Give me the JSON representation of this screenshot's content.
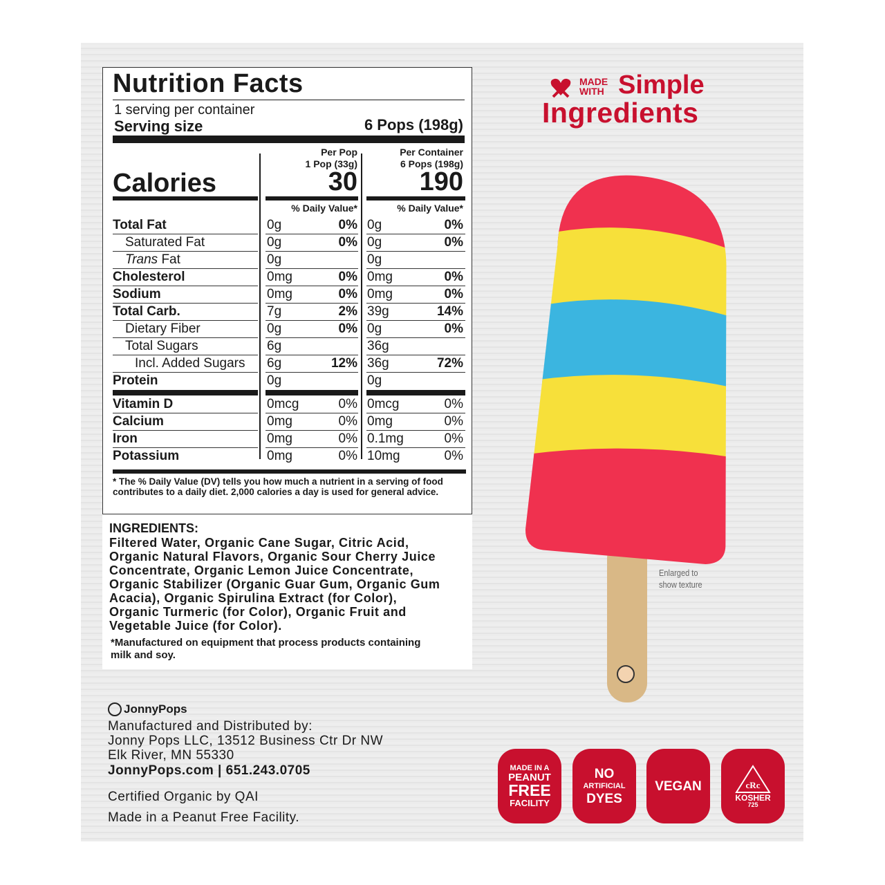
{
  "nutrition": {
    "title": "Nutrition Facts",
    "servings": "1 serving per container",
    "serving_size_label": "Serving size",
    "serving_size_value": "6 Pops (198g)",
    "calories_label": "Calories",
    "col1_head1": "Per Pop",
    "col1_head2": "1 Pop (33g)",
    "col1_calories": "30",
    "col2_head1": "Per Container",
    "col2_head2": "6 Pops (198g)",
    "col2_calories": "190",
    "dv_head": "% Daily Value*",
    "rows": [
      {
        "name": "Total Fat",
        "bold": true,
        "indent": 0,
        "a": "0g",
        "ap": "0%",
        "b": "0g",
        "bp": "0%"
      },
      {
        "name": "Saturated Fat",
        "bold": false,
        "indent": 1,
        "a": "0g",
        "ap": "0%",
        "b": "0g",
        "bp": "0%"
      },
      {
        "name": "Trans Fat",
        "bold": false,
        "indent": 1,
        "italic_prefix": "Trans",
        "a": "0g",
        "ap": "",
        "b": "0g",
        "bp": ""
      },
      {
        "name": "Cholesterol",
        "bold": true,
        "indent": 0,
        "a": "0mg",
        "ap": "0%",
        "b": "0mg",
        "bp": "0%"
      },
      {
        "name": "Sodium",
        "bold": true,
        "indent": 0,
        "a": "0mg",
        "ap": "0%",
        "b": "0mg",
        "bp": "0%"
      },
      {
        "name": "Total Carb.",
        "bold": true,
        "indent": 0,
        "a": "7g",
        "ap": "2%",
        "b": "39g",
        "bp": "14%"
      },
      {
        "name": "Dietary Fiber",
        "bold": false,
        "indent": 1,
        "a": "0g",
        "ap": "0%",
        "b": "0g",
        "bp": "0%"
      },
      {
        "name": "Total Sugars",
        "bold": false,
        "indent": 1,
        "a": "6g",
        "ap": "",
        "b": "36g",
        "bp": ""
      },
      {
        "name": "Incl. Added Sugars",
        "bold": false,
        "indent": 2,
        "a": "6g",
        "ap": "12%",
        "b": "36g",
        "bp": "72%"
      },
      {
        "name": "Protein",
        "bold": true,
        "indent": 0,
        "a": "0g",
        "ap": "",
        "b": "0g",
        "bp": ""
      }
    ],
    "vitamins": [
      {
        "name": "Vitamin D",
        "a": "0mcg",
        "ap": "0%",
        "b": "0mcg",
        "bp": "0%"
      },
      {
        "name": "Calcium",
        "a": "0mg",
        "ap": "0%",
        "b": "0mg",
        "bp": "0%"
      },
      {
        "name": "Iron",
        "a": "0mg",
        "ap": "0%",
        "b": "0.1mg",
        "bp": "0%"
      },
      {
        "name": "Potassium",
        "a": "0mg",
        "ap": "0%",
        "b": "10mg",
        "bp": "0%"
      }
    ],
    "footnote": "* The % Daily Value (DV) tells you how much a nutrient in a serving of food contributes to a daily diet. 2,000 calories a day is used for general advice."
  },
  "ingredients": {
    "heading": "INGREDIENTS:",
    "lines": [
      "Filtered Water, Organic Cane Sugar, Citric Acid,",
      "Organic Natural Flavors, Organic Sour Cherry Juice",
      "Concentrate, Organic Lemon Juice Concentrate,",
      "Organic Stabilizer (Organic Guar Gum, Organic Gum",
      "Acacia), Organic Spirulina Extract (for Color),",
      "Organic Turmeric (for Color), Organic Fruit and",
      "Vegetable Juice (for Color)."
    ],
    "allergen": "*Manufactured on equipment that process products containing milk and soy."
  },
  "brand": {
    "logo": "JonnyPops",
    "lines": [
      "Manufactured and Distributed by:",
      "Jonny Pops LLC, 13512 Business Ctr Dr NW",
      "Elk River, MN 55330"
    ],
    "contact": "JonnyPops.com | 651.243.0705",
    "certified": "Certified Organic by QAI",
    "facility": "Made in a Peanut Free Facility."
  },
  "tagline": {
    "made": "MADE",
    "with": "WITH",
    "simple": "Simple",
    "ingredients": "Ingredients",
    "icon": "heart-popsicle-icon"
  },
  "photo_note": [
    "Enlarged to",
    "show texture"
  ],
  "badges": {
    "peanut": [
      "MADE IN A",
      "PEANUT",
      "FREE",
      "FACILITY"
    ],
    "dyes": [
      "NO",
      "ARTIFICIAL",
      "DYES"
    ],
    "vegan": "VEGAN",
    "kosher": {
      "mark": "cRc",
      "label": "KOSHER",
      "num": "725"
    }
  },
  "colors": {
    "brand_red": "#c8102e",
    "pop_red": "#f0314f",
    "pop_yellow": "#f7e03a",
    "pop_blue": "#3bb5e0"
  }
}
